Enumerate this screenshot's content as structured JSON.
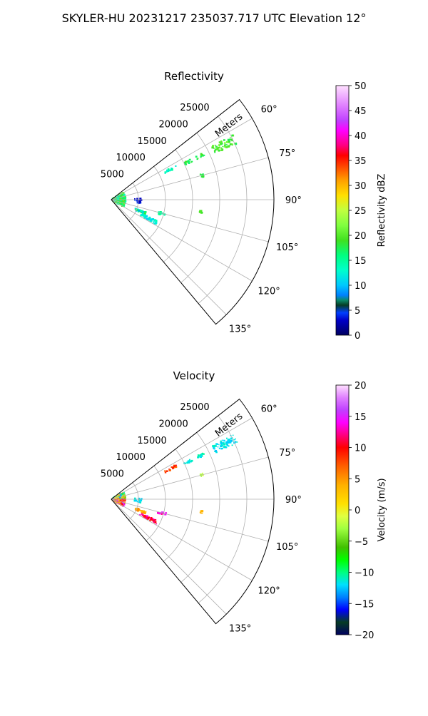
{
  "figure": {
    "suptitle": "SKYLER-HU  20231217  235037.717 UTC Elevation 12°"
  },
  "chart_data": [
    {
      "type": "polar-ppi",
      "title": "Reflectivity",
      "range_label": "Meters",
      "range_ticks": [
        5000,
        10000,
        15000,
        20000,
        25000
      ],
      "range_tick_labels": [
        "5000",
        "10000",
        "15000",
        "20000",
        "25000"
      ],
      "rmax": 30000,
      "azimuth_range_deg": [
        52,
        140
      ],
      "azimuth_ticks_deg": [
        60,
        75,
        90,
        105,
        120,
        135
      ],
      "azimuth_tick_labels": [
        "60°",
        "75°",
        "90°",
        "105°",
        "120°",
        "135°"
      ],
      "grid": true,
      "colorbar": {
        "label": "Reflectivity dBZ",
        "vmin": 0,
        "vmax": 50,
        "ticks": [
          0,
          5,
          10,
          15,
          20,
          25,
          30,
          35,
          40,
          45,
          50
        ],
        "tick_labels": [
          "0",
          "5",
          "10",
          "15",
          "20",
          "25",
          "30",
          "35",
          "40",
          "45",
          "50"
        ],
        "stops": [
          {
            "v": 0,
            "c": "#000060"
          },
          {
            "v": 3,
            "c": "#0000c8"
          },
          {
            "v": 4.5,
            "c": "#0040ff"
          },
          {
            "v": 6,
            "c": "#063c24"
          },
          {
            "v": 7,
            "c": "#0a8a6a"
          },
          {
            "v": 8,
            "c": "#0080ff"
          },
          {
            "v": 10,
            "c": "#00c8ff"
          },
          {
            "v": 13,
            "c": "#00ffcc"
          },
          {
            "v": 16,
            "c": "#00ff80"
          },
          {
            "v": 19,
            "c": "#40e020"
          },
          {
            "v": 22,
            "c": "#80ff40"
          },
          {
            "v": 25,
            "c": "#c0ff40"
          },
          {
            "v": 28,
            "c": "#ffe000"
          },
          {
            "v": 31,
            "c": "#ffa000"
          },
          {
            "v": 34,
            "c": "#ff4000"
          },
          {
            "v": 36,
            "c": "#ff0000"
          },
          {
            "v": 38,
            "c": "#ff0080"
          },
          {
            "v": 41,
            "c": "#ff00ff"
          },
          {
            "v": 43,
            "c": "#c040ff"
          },
          {
            "v": 46,
            "c": "#e080ff"
          },
          {
            "v": 50,
            "c": "#ffe0ff"
          }
        ]
      },
      "echoes": [
        {
          "az": [
            62,
            66
          ],
          "r": [
            21000,
            25500
          ],
          "v": [
            17,
            22
          ],
          "density": 0.7
        },
        {
          "az": [
            63,
            65
          ],
          "r": [
            17500,
            19000
          ],
          "v": [
            16,
            20
          ],
          "density": 0.5
        },
        {
          "az": [
            63,
            65
          ],
          "r": [
            15000,
            16500
          ],
          "v": [
            16,
            19
          ],
          "density": 0.5
        },
        {
          "az": [
            62,
            64
          ],
          "r": [
            11000,
            13500
          ],
          "v": [
            11,
            15
          ],
          "density": 0.4
        },
        {
          "az": [
            60,
            120
          ],
          "r": [
            300,
            2600
          ],
          "v": [
            13,
            21
          ],
          "density": 0.85
        },
        {
          "az": [
            88,
            97
          ],
          "r": [
            4300,
            5600
          ],
          "v": [
            2,
            5
          ],
          "density": 0.25
        },
        {
          "az": [
            110,
            114
          ],
          "r": [
            4800,
            6800
          ],
          "v": [
            8,
            21
          ],
          "density": 0.6
        },
        {
          "az": [
            115,
            119
          ],
          "r": [
            6000,
            9500
          ],
          "v": [
            10,
            14
          ],
          "density": 0.5
        },
        {
          "az": [
            104,
            107
          ],
          "r": [
            9000,
            10500
          ],
          "v": [
            14,
            16
          ],
          "density": 0.3
        },
        {
          "az": [
            74,
            76
          ],
          "r": [
            17000,
            17600
          ],
          "v": [
            17,
            19
          ],
          "density": 0.6
        },
        {
          "az": [
            97,
            99
          ],
          "r": [
            16500,
            17000
          ],
          "v": [
            18,
            20
          ],
          "density": 0.6
        }
      ]
    },
    {
      "type": "polar-ppi",
      "title": "Velocity",
      "range_label": "Meters",
      "range_ticks": [
        5000,
        10000,
        15000,
        20000,
        25000
      ],
      "range_tick_labels": [
        "5000",
        "10000",
        "15000",
        "20000",
        "25000"
      ],
      "rmax": 30000,
      "azimuth_range_deg": [
        52,
        140
      ],
      "azimuth_ticks_deg": [
        60,
        75,
        90,
        105,
        120,
        135
      ],
      "azimuth_tick_labels": [
        "60°",
        "75°",
        "90°",
        "105°",
        "120°",
        "135°"
      ],
      "grid": true,
      "colorbar": {
        "label": "Velocity (m/s)",
        "vmin": -20,
        "vmax": 20,
        "ticks": [
          -20,
          -15,
          -10,
          -5,
          0,
          5,
          10,
          15,
          20
        ],
        "tick_labels": [
          "−20",
          "−15",
          "−10",
          "−5",
          "0",
          "5",
          "10",
          "15",
          "20"
        ],
        "stops": [
          {
            "v": -20,
            "c": "#000060"
          },
          {
            "v": -18,
            "c": "#063c24"
          },
          {
            "v": -16,
            "c": "#0000ff"
          },
          {
            "v": -14,
            "c": "#0080ff"
          },
          {
            "v": -12,
            "c": "#00e0ff"
          },
          {
            "v": -10,
            "c": "#00ff80"
          },
          {
            "v": -8,
            "c": "#00ff00"
          },
          {
            "v": -6,
            "c": "#40c000"
          },
          {
            "v": -3,
            "c": "#a0ff40"
          },
          {
            "v": -1,
            "c": "#e0ff40"
          },
          {
            "v": 1,
            "c": "#ffe000"
          },
          {
            "v": 4,
            "c": "#ffb000"
          },
          {
            "v": 7,
            "c": "#ff6000"
          },
          {
            "v": 10,
            "c": "#ff0000"
          },
          {
            "v": 12,
            "c": "#ff0080"
          },
          {
            "v": 14,
            "c": "#ff00ff"
          },
          {
            "v": 16,
            "c": "#c040ff"
          },
          {
            "v": 18,
            "c": "#e080ff"
          },
          {
            "v": 20,
            "c": "#ffe0ff"
          }
        ]
      },
      "echoes": [
        {
          "az": [
            62,
            66
          ],
          "r": [
            21000,
            25500
          ],
          "v": [
            -13,
            -11
          ],
          "density": 0.7
        },
        {
          "az": [
            63,
            65
          ],
          "r": [
            17500,
            19000
          ],
          "v": [
            -12,
            -10
          ],
          "density": 0.5
        },
        {
          "az": [
            63,
            65
          ],
          "r": [
            15000,
            16500
          ],
          "v": [
            -12,
            -11
          ],
          "density": 0.5
        },
        {
          "az": [
            62,
            64
          ],
          "r": [
            11000,
            13500
          ],
          "v": [
            5,
            11
          ],
          "density": 0.4
        },
        {
          "az": [
            60,
            90
          ],
          "r": [
            300,
            2600
          ],
          "v": [
            -14,
            4
          ],
          "density": 0.85
        },
        {
          "az": [
            90,
            120
          ],
          "r": [
            300,
            2600
          ],
          "v": [
            2,
            16
          ],
          "density": 0.85
        },
        {
          "az": [
            88,
            97
          ],
          "r": [
            4300,
            5600
          ],
          "v": [
            -13,
            -11
          ],
          "density": 0.25
        },
        {
          "az": [
            110,
            114
          ],
          "r": [
            4800,
            6800
          ],
          "v": [
            2,
            7
          ],
          "density": 0.6
        },
        {
          "az": [
            115,
            119
          ],
          "r": [
            6000,
            9500
          ],
          "v": [
            9,
            14
          ],
          "density": 0.5
        },
        {
          "az": [
            104,
            107
          ],
          "r": [
            9000,
            10500
          ],
          "v": [
            12,
            15
          ],
          "density": 0.3
        },
        {
          "az": [
            74,
            76
          ],
          "r": [
            17000,
            17600
          ],
          "v": [
            -3,
            -1
          ],
          "density": 0.6
        },
        {
          "az": [
            97,
            99
          ],
          "r": [
            16500,
            17000
          ],
          "v": [
            3,
            5
          ],
          "density": 0.6
        }
      ]
    }
  ]
}
